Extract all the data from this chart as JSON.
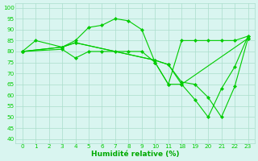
{
  "background_color": "#d9f5f0",
  "grid_color": "#aaddcc",
  "line_color": "#00cc00",
  "marker_color": "#00cc00",
  "xlabel": "Humidité relative (%)",
  "xlabel_color": "#00aa00",
  "yticks": [
    40,
    45,
    50,
    55,
    60,
    65,
    70,
    75,
    80,
    85,
    90,
    95,
    100
  ],
  "xtick_labels": [
    "0",
    "1",
    "2",
    "3",
    "4",
    "5",
    "6",
    "7",
    "8",
    "9",
    "10",
    "11",
    "",
    "",
    "",
    "",
    "",
    "",
    "18",
    "19",
    "20",
    "21",
    "22",
    "23"
  ],
  "xlim": [
    -0.5,
    17.5
  ],
  "ylim": [
    38,
    102
  ],
  "series": [
    {
      "x": [
        0,
        1,
        3,
        4,
        5,
        6,
        7,
        8,
        9,
        10,
        11,
        12,
        13,
        14,
        15,
        16,
        17
      ],
      "y": [
        80,
        85,
        82,
        85,
        91,
        92,
        95,
        94,
        90,
        75,
        65,
        85,
        85,
        85,
        85,
        85,
        87
      ]
    },
    {
      "x": [
        0,
        3,
        4,
        5,
        6,
        7,
        8,
        9,
        10,
        11,
        12,
        13,
        14,
        15,
        16,
        17
      ],
      "y": [
        80,
        81,
        77,
        80,
        80,
        80,
        80,
        80,
        75,
        65,
        65,
        58,
        50,
        63,
        73,
        87
      ]
    },
    {
      "x": [
        0,
        3,
        4,
        10,
        11,
        12,
        13,
        14,
        15,
        16,
        17
      ],
      "y": [
        80,
        82,
        84,
        76,
        74,
        66,
        65,
        59,
        50,
        64,
        86
      ]
    },
    {
      "x": [
        0,
        3,
        4,
        10,
        11,
        12,
        17
      ],
      "y": [
        80,
        82,
        84,
        76,
        74,
        65,
        86
      ]
    }
  ]
}
